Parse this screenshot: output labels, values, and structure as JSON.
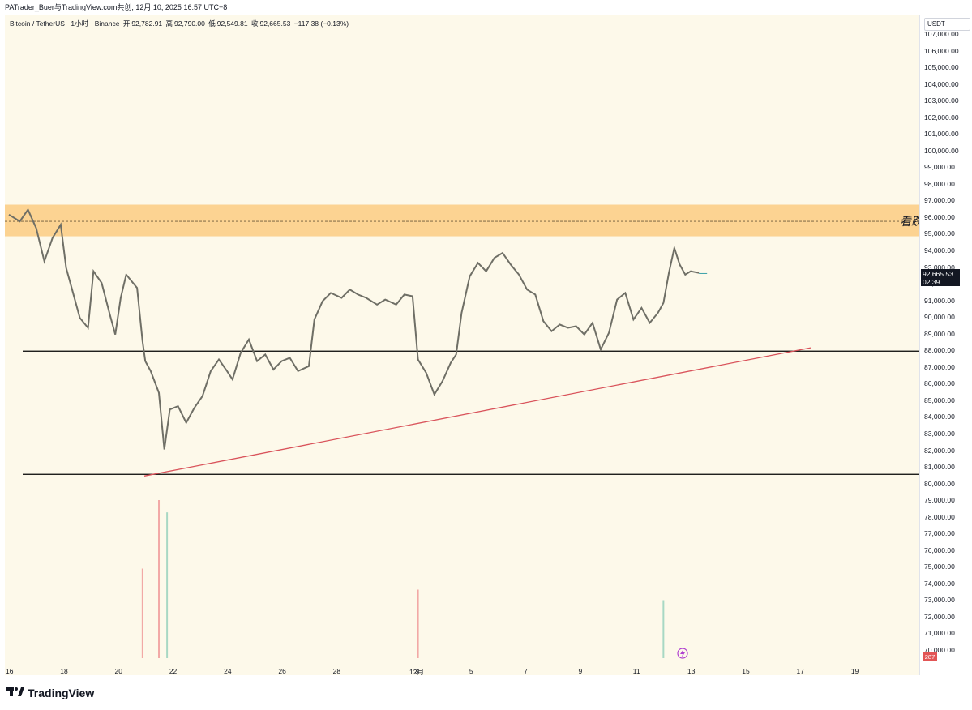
{
  "header": {
    "watermark": "PATrader_Buer与TradingView.com共创, 12月 10, 2025 16:57 UTC+8"
  },
  "legend": {
    "symbol": "Bitcoin / TetherUS · 1小时 · Binance",
    "open_label": "开",
    "open": "92,782.91",
    "high_label": "高",
    "high": "92,790.00",
    "low_label": "低",
    "low": "92,549.81",
    "close_label": "收",
    "close": "92,665.53",
    "change": "−117.38 (−0.13%)"
  },
  "price_axis": {
    "currency": "USDT",
    "current_price": "92,665.53",
    "countdown": "02:39",
    "volume_badge": "287"
  },
  "zone": {
    "label": "看跌"
  },
  "footer": {
    "brand": "TradingView"
  },
  "colors": {
    "background": "#fdf9ea",
    "candles": "#6f6f66",
    "resistance_zone": "#fcd392",
    "support_lines": "#000000",
    "trendline": "#d9535b",
    "volume_up": "#a8d8c4",
    "volume_down": "#f2a9a6"
  },
  "chart_data": {
    "type": "line",
    "title": "Bitcoin / TetherUS · 1小时 · Binance",
    "ylim": [
      69500,
      107800
    ],
    "yticks": [
      "107,000.00",
      "106,000.00",
      "105,000.00",
      "104,000.00",
      "103,000.00",
      "102,000.00",
      "101,000.00",
      "100,000.00",
      "99,000.00",
      "98,000.00",
      "97,000.00",
      "96,000.00",
      "95,000.00",
      "94,000.00",
      "93,000.00",
      "92,000.00",
      "91,000.00",
      "90,000.00",
      "89,000.00",
      "88,000.00",
      "87,000.00",
      "86,000.00",
      "85,000.00",
      "84,000.00",
      "83,000.00",
      "82,000.00",
      "81,000.00",
      "80,000.00",
      "79,000.00",
      "78,000.00",
      "77,000.00",
      "76,000.00",
      "75,000.00",
      "74,000.00",
      "73,000.00",
      "72,000.00",
      "71,000.00",
      "70,000.00"
    ],
    "xticks": [
      "16",
      "18",
      "20",
      "22",
      "24",
      "26",
      "28",
      "12月",
      "3",
      "5",
      "7",
      "9",
      "11",
      "13",
      "15",
      "17",
      "19"
    ],
    "x_day_range": [
      16,
      49.2
    ],
    "series": [
      {
        "name": "BTCUSDT",
        "points": [
          [
            16.0,
            96200
          ],
          [
            16.4,
            95800
          ],
          [
            16.7,
            96500
          ],
          [
            17.0,
            95400
          ],
          [
            17.3,
            93400
          ],
          [
            17.6,
            94800
          ],
          [
            17.9,
            95600
          ],
          [
            18.1,
            93000
          ],
          [
            18.3,
            91800
          ],
          [
            18.6,
            90000
          ],
          [
            18.9,
            89400
          ],
          [
            19.1,
            92800
          ],
          [
            19.4,
            92100
          ],
          [
            19.7,
            90200
          ],
          [
            19.9,
            89000
          ],
          [
            20.1,
            91200
          ],
          [
            20.3,
            92600
          ],
          [
            20.5,
            92200
          ],
          [
            20.7,
            91800
          ],
          [
            20.9,
            88600
          ],
          [
            21.0,
            87400
          ],
          [
            21.2,
            86800
          ],
          [
            21.5,
            85500
          ],
          [
            21.7,
            82100
          ],
          [
            21.9,
            84500
          ],
          [
            22.2,
            84700
          ],
          [
            22.5,
            83700
          ],
          [
            22.8,
            84600
          ],
          [
            23.1,
            85300
          ],
          [
            23.4,
            86800
          ],
          [
            23.7,
            87500
          ],
          [
            24.0,
            86800
          ],
          [
            24.2,
            86300
          ],
          [
            24.5,
            87900
          ],
          [
            24.8,
            88700
          ],
          [
            25.1,
            87400
          ],
          [
            25.4,
            87800
          ],
          [
            25.7,
            86900
          ],
          [
            26.0,
            87400
          ],
          [
            26.3,
            87600
          ],
          [
            26.6,
            86800
          ],
          [
            27.0,
            87100
          ],
          [
            27.2,
            89900
          ],
          [
            27.5,
            91000
          ],
          [
            27.8,
            91500
          ],
          [
            28.2,
            91200
          ],
          [
            28.5,
            91700
          ],
          [
            28.8,
            91400
          ],
          [
            29.1,
            91200
          ],
          [
            29.5,
            90800
          ],
          [
            29.8,
            91100
          ],
          [
            30.2,
            90800
          ],
          [
            30.5,
            91400
          ],
          [
            30.8,
            91300
          ],
          [
            31.0,
            87500
          ],
          [
            31.3,
            86700
          ],
          [
            31.6,
            85400
          ],
          [
            31.9,
            86200
          ],
          [
            32.2,
            87300
          ],
          [
            32.4,
            87800
          ],
          [
            32.6,
            90300
          ],
          [
            32.9,
            92500
          ],
          [
            33.2,
            93300
          ],
          [
            33.5,
            92800
          ],
          [
            33.8,
            93600
          ],
          [
            34.1,
            93900
          ],
          [
            34.4,
            93200
          ],
          [
            34.7,
            92600
          ],
          [
            35.0,
            91700
          ],
          [
            35.3,
            91400
          ],
          [
            35.6,
            89800
          ],
          [
            35.9,
            89200
          ],
          [
            36.2,
            89600
          ],
          [
            36.5,
            89400
          ],
          [
            36.8,
            89500
          ],
          [
            37.1,
            89000
          ],
          [
            37.4,
            89700
          ],
          [
            37.7,
            88100
          ],
          [
            38.0,
            89100
          ],
          [
            38.3,
            91100
          ],
          [
            38.6,
            91500
          ],
          [
            38.9,
            89900
          ],
          [
            39.2,
            90600
          ],
          [
            39.5,
            89700
          ],
          [
            39.8,
            90300
          ],
          [
            40.0,
            90900
          ],
          [
            40.2,
            92700
          ],
          [
            40.4,
            94200
          ],
          [
            40.6,
            93200
          ],
          [
            40.8,
            92600
          ],
          [
            41.0,
            92800
          ],
          [
            41.3,
            92700
          ]
        ]
      }
    ],
    "horizontal_levels": [
      88000,
      80600
    ],
    "resistance_zone": [
      94900,
      96800
    ],
    "resistance_dashed": 95800,
    "trendline": {
      "from": [
        21.5,
        80500
      ],
      "to": [
        45.4,
        88200
      ]
    },
    "volume": [
      {
        "day": 21.5,
        "value": 9000
      },
      {
        "day": 21.8,
        "value": 8300
      },
      {
        "day": 20.9,
        "value": 5100
      },
      {
        "day": 40.0,
        "value": 3300
      },
      {
        "day": 31.0,
        "value": 3900
      }
    ]
  }
}
